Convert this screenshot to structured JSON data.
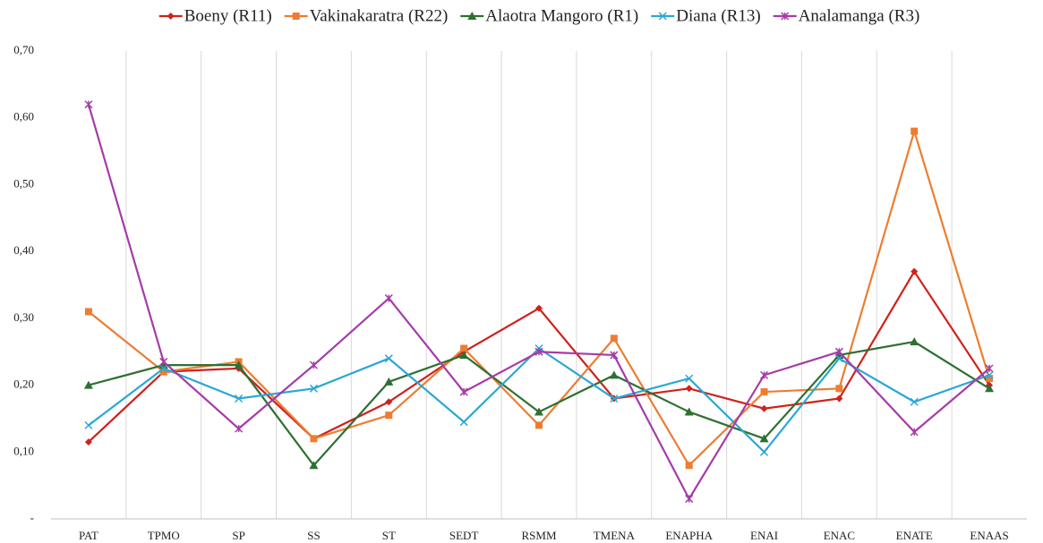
{
  "chart_data": {
    "type": "line",
    "categories": [
      "PAT",
      "TPMO",
      "SP",
      "SS",
      "ST",
      "SEDT",
      "RSMM",
      "TMENA",
      "ENAPHA",
      "ENAI",
      "ENAC",
      "ENATE",
      "ENAAS"
    ],
    "series": [
      {
        "name": "Boeny (R11)",
        "color": "#d0211c",
        "marker": "diamond",
        "values": [
          0.115,
          0.22,
          0.225,
          0.12,
          0.175,
          0.25,
          0.315,
          0.18,
          0.195,
          0.165,
          0.18,
          0.37,
          0.2
        ]
      },
      {
        "name": "Vakinakaratra (R22)",
        "color": "#ed7d31",
        "marker": "square",
        "values": [
          0.31,
          0.22,
          0.235,
          0.12,
          0.155,
          0.255,
          0.14,
          0.27,
          0.08,
          0.19,
          0.195,
          0.58,
          0.21
        ]
      },
      {
        "name": "Alaotra Mangoro (R1)",
        "color": "#2e7031",
        "marker": "triangle",
        "values": [
          0.2,
          0.23,
          0.23,
          0.08,
          0.205,
          0.245,
          0.16,
          0.215,
          0.16,
          0.12,
          0.245,
          0.265,
          0.195
        ]
      },
      {
        "name": "Diana (R13)",
        "color": "#2aa7d6",
        "marker": "x",
        "values": [
          0.14,
          0.225,
          0.18,
          0.195,
          0.24,
          0.145,
          0.255,
          0.18,
          0.21,
          0.1,
          0.24,
          0.175,
          0.215
        ]
      },
      {
        "name": "Analamanga (R3)",
        "color": "#a43ca8",
        "marker": "star",
        "values": [
          0.62,
          0.235,
          0.135,
          0.23,
          0.33,
          0.19,
          0.25,
          0.245,
          0.03,
          0.215,
          0.25,
          0.13,
          0.225
        ]
      }
    ],
    "ylim": [
      0,
      0.7
    ],
    "yticks": [
      {
        "value": 0,
        "label": "-"
      },
      {
        "value": 0.1,
        "label": "0,10"
      },
      {
        "value": 0.2,
        "label": "0,20"
      },
      {
        "value": 0.3,
        "label": "0,30"
      },
      {
        "value": 0.4,
        "label": "0,40"
      },
      {
        "value": 0.5,
        "label": "0,50"
      },
      {
        "value": 0.6,
        "label": "0,60"
      },
      {
        "value": 0.7,
        "label": "0,70"
      }
    ],
    "legend": "top"
  }
}
